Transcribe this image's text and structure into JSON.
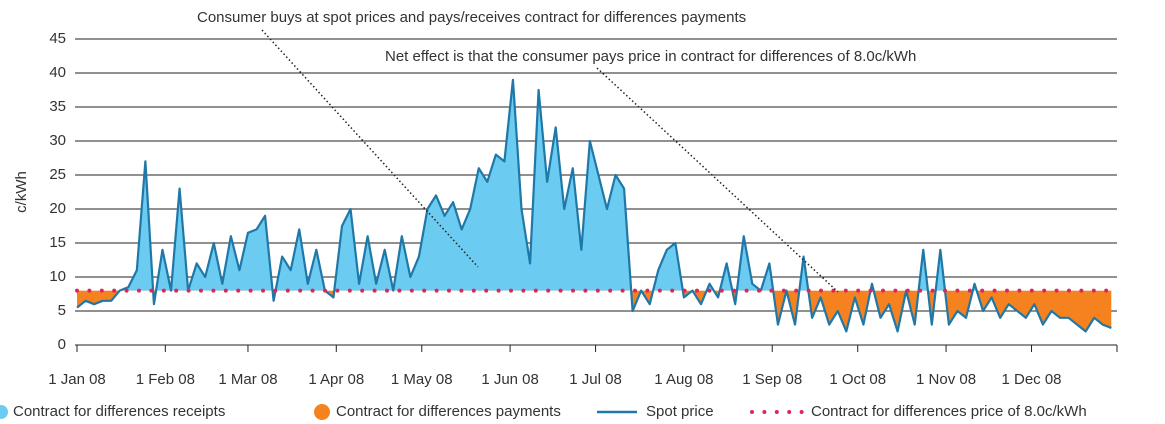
{
  "chart_data": {
    "type": "area-line",
    "ylabel": "c/kWh",
    "annotations": [
      "Consumer buys at spot prices and pays/receives contract for differences payments",
      "Net effect is that the consumer pays price in contract for differences of 8.0c/kWh"
    ],
    "xlim": [
      "2008-01-01",
      "2008-12-31"
    ],
    "xticks": [
      {
        "value": "2008-01-01",
        "label": "1 Jan 08"
      },
      {
        "value": "2008-02-01",
        "label": "1 Feb 08"
      },
      {
        "value": "2008-03-01",
        "label": "1 Mar 08"
      },
      {
        "value": "2008-04-01",
        "label": "1 Apr 08"
      },
      {
        "value": "2008-05-01",
        "label": "1 May 08"
      },
      {
        "value": "2008-06-01",
        "label": "1 Jun 08"
      },
      {
        "value": "2008-07-01",
        "label": "1 Jul 08"
      },
      {
        "value": "2008-08-01",
        "label": "1 Aug 08"
      },
      {
        "value": "2008-09-01",
        "label": "1 Sep 08"
      },
      {
        "value": "2008-10-01",
        "label": "1 Oct 08"
      },
      {
        "value": "2008-11-01",
        "label": "1 Nov 08"
      },
      {
        "value": "2008-12-01",
        "label": "1 Dec 08"
      }
    ],
    "ylim": [
      0,
      45
    ],
    "yticks": [
      0,
      5,
      10,
      15,
      20,
      25,
      30,
      35,
      40,
      45
    ],
    "grid": true,
    "fills": [
      {
        "name": "Contract for differences receipts",
        "color": "#6ccbf0"
      },
      {
        "name": "Contract for differences payments",
        "color": "#f5821f"
      }
    ],
    "contract": {
      "name": "Contract for differences price of 8.0c/kWh",
      "value": 8,
      "color": "#e0245e"
    },
    "x": [
      "2008-01-01",
      "2008-01-04",
      "2008-01-07",
      "2008-01-10",
      "2008-01-13",
      "2008-01-16",
      "2008-01-19",
      "2008-01-22",
      "2008-01-25",
      "2008-01-28",
      "2008-01-31",
      "2008-02-03",
      "2008-02-06",
      "2008-02-09",
      "2008-02-12",
      "2008-02-15",
      "2008-02-18",
      "2008-02-21",
      "2008-02-24",
      "2008-02-27",
      "2008-03-01",
      "2008-03-04",
      "2008-03-07",
      "2008-03-10",
      "2008-03-13",
      "2008-03-16",
      "2008-03-19",
      "2008-03-22",
      "2008-03-25",
      "2008-03-28",
      "2008-03-31",
      "2008-04-03",
      "2008-04-06",
      "2008-04-09",
      "2008-04-12",
      "2008-04-15",
      "2008-04-18",
      "2008-04-21",
      "2008-04-24",
      "2008-04-27",
      "2008-04-30",
      "2008-05-03",
      "2008-05-06",
      "2008-05-09",
      "2008-05-12",
      "2008-05-15",
      "2008-05-18",
      "2008-05-21",
      "2008-05-24",
      "2008-05-27",
      "2008-05-30",
      "2008-06-02",
      "2008-06-05",
      "2008-06-08",
      "2008-06-11",
      "2008-06-14",
      "2008-06-17",
      "2008-06-20",
      "2008-06-23",
      "2008-06-26",
      "2008-06-29",
      "2008-07-02",
      "2008-07-05",
      "2008-07-08",
      "2008-07-11",
      "2008-07-14",
      "2008-07-17",
      "2008-07-20",
      "2008-07-23",
      "2008-07-26",
      "2008-07-29",
      "2008-08-01",
      "2008-08-04",
      "2008-08-07",
      "2008-08-10",
      "2008-08-13",
      "2008-08-16",
      "2008-08-19",
      "2008-08-22",
      "2008-08-25",
      "2008-08-28",
      "2008-08-31",
      "2008-09-03",
      "2008-09-06",
      "2008-09-09",
      "2008-09-12",
      "2008-09-15",
      "2008-09-18",
      "2008-09-21",
      "2008-09-24",
      "2008-09-27",
      "2008-09-30",
      "2008-10-03",
      "2008-10-06",
      "2008-10-09",
      "2008-10-12",
      "2008-10-15",
      "2008-10-18",
      "2008-10-21",
      "2008-10-24",
      "2008-10-27",
      "2008-10-30",
      "2008-11-02",
      "2008-11-05",
      "2008-11-08",
      "2008-11-11",
      "2008-11-14",
      "2008-11-17",
      "2008-11-20",
      "2008-11-23",
      "2008-11-26",
      "2008-11-29",
      "2008-12-02",
      "2008-12-05",
      "2008-12-08",
      "2008-12-11",
      "2008-12-14",
      "2008-12-17",
      "2008-12-20",
      "2008-12-23",
      "2008-12-26",
      "2008-12-29"
    ],
    "series": [
      {
        "name": "Spot price",
        "color": "#1f78a8",
        "values": [
          5.5,
          6.5,
          6,
          6.5,
          6.5,
          8,
          8.5,
          11,
          27,
          6,
          14,
          8,
          23,
          8,
          12,
          10,
          15,
          9,
          16,
          11,
          16.5,
          17,
          19,
          6.5,
          13,
          11,
          17,
          9,
          14,
          8,
          7,
          17.5,
          20,
          9,
          16,
          9,
          14,
          8,
          16,
          10,
          13,
          20,
          22,
          19,
          21,
          17,
          20,
          26,
          24,
          28,
          27,
          39,
          20,
          12,
          37.5,
          24,
          32,
          20,
          26,
          14,
          30,
          25,
          20,
          25,
          23,
          5,
          8,
          6,
          11,
          14,
          15,
          7,
          8,
          6,
          9,
          7,
          12,
          6,
          16,
          9,
          8,
          12,
          3,
          8,
          3,
          13,
          4,
          7,
          3,
          5,
          2,
          7,
          3,
          9,
          4,
          6,
          2,
          8,
          3,
          14,
          3,
          14,
          3,
          5,
          4,
          9,
          5,
          7,
          4,
          6,
          5,
          4,
          6,
          3,
          5,
          4,
          4,
          3,
          2,
          4,
          3,
          2.5
        ]
      }
    ]
  }
}
